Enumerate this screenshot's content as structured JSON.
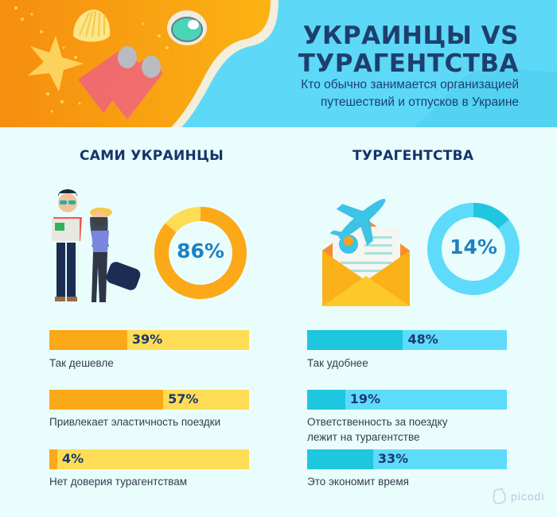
{
  "header": {
    "title_line1": "УКРАИНЦЫ VS",
    "title_line2": "ТУРАГЕНТСТВА",
    "subtitle_line1": "Кто обычно занимается организацией",
    "subtitle_line2": "путешествий и отпусков в Украине",
    "colors": {
      "sand": "#f9a11b",
      "sea": "#5dd8f7",
      "title": "#1e3f6e"
    }
  },
  "left": {
    "title": "САМИ УКРАИНЦЫ",
    "donut_label": "86%",
    "donut_value": 86,
    "colors": {
      "main": "#fba919",
      "rest": "#fedc55",
      "label": "#1c82c2"
    },
    "bars": [
      {
        "label": "Так дешевле",
        "pct_text": "39%",
        "value": 39
      },
      {
        "label": "Привлекает эластичность поездки",
        "pct_text": "57%",
        "value": 57
      },
      {
        "label": "Нет доверия турагентствам",
        "pct_text": "4%",
        "value": 4
      }
    ]
  },
  "right": {
    "title": "ТУРАГЕНТСТВА",
    "donut_label": "14%",
    "donut_value": 14,
    "colors": {
      "main": "#1fc6e0",
      "rest": "#5edbfb",
      "label": "#1c82c2"
    },
    "bars": [
      {
        "label": "Так удобнее",
        "pct_text": "48%",
        "value": 48
      },
      {
        "label_line1": "Ответственность за поездку",
        "label_line2": "лежит на турагентстве",
        "pct_text": "19%",
        "value": 19
      },
      {
        "label": "Это экономит время",
        "pct_text": "33%",
        "value": 33
      }
    ]
  },
  "footer": {
    "brand": "picodi"
  },
  "chart_data": [
    {
      "type": "pie",
      "title": "Кто обычно занимается организацией путешествий и отпусков в Украине",
      "categories": [
        "Сами украинцы",
        "Турагентства"
      ],
      "values": [
        86,
        14
      ],
      "unit": "%"
    },
    {
      "type": "bar",
      "title": "Сами украинцы — причины",
      "categories": [
        "Так дешевле",
        "Привлекает эластичность поездки",
        "Нет доверия турагентствам"
      ],
      "values": [
        39,
        57,
        4
      ],
      "ylim": [
        0,
        100
      ],
      "unit": "%"
    },
    {
      "type": "bar",
      "title": "Турагентства — причины",
      "categories": [
        "Так удобнее",
        "Ответственность за поездку лежит на турагентстве",
        "Это экономит время"
      ],
      "values": [
        48,
        19,
        33
      ],
      "ylim": [
        0,
        100
      ],
      "unit": "%"
    }
  ]
}
